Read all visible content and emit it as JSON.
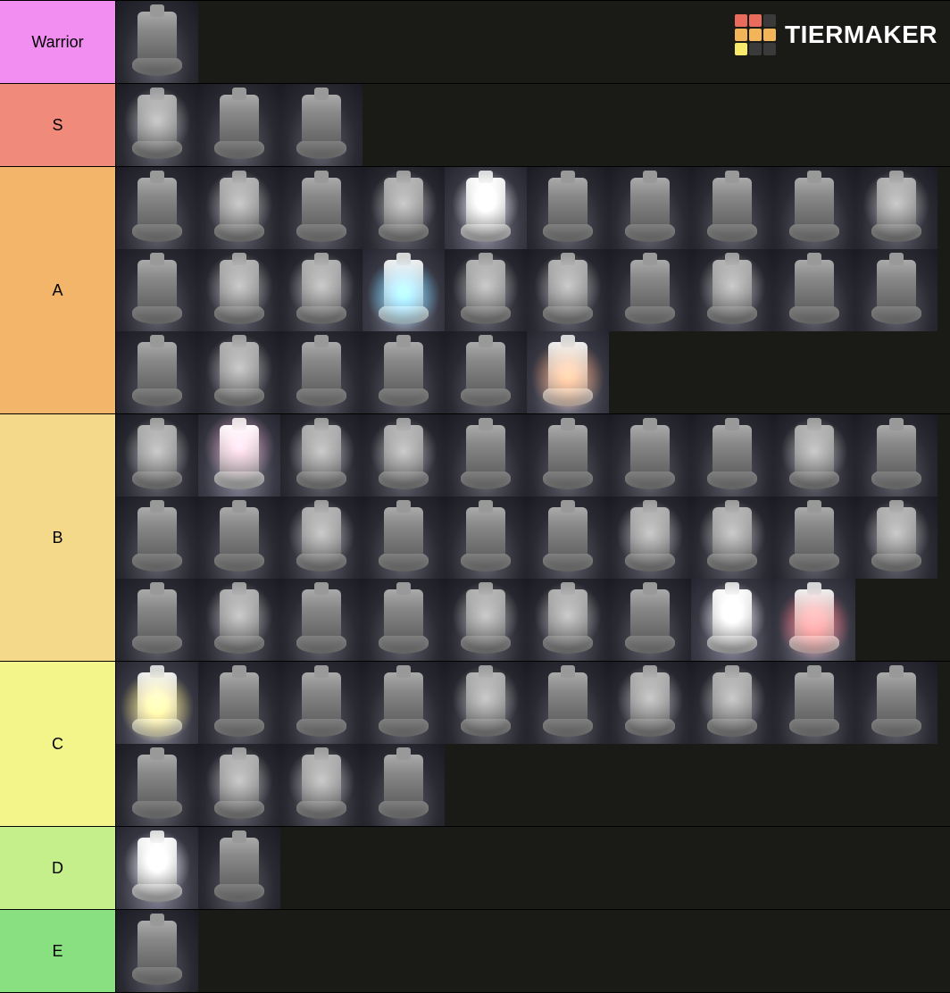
{
  "brand": {
    "name": "TIERMAKER"
  },
  "logo_colors": {
    "cells": [
      "#e86b5c",
      "#e86b5c",
      "#3a3a3a",
      "#f2b55a",
      "#f2b55a",
      "#f2b55a",
      "#f6e96b",
      "#3a3a3a",
      "#3a3a3a"
    ]
  },
  "tiers": [
    {
      "label": "Warrior",
      "color": "#f28ef2",
      "items": [
        {
          "glow": ""
        }
      ]
    },
    {
      "label": "S",
      "color": "#f08a7a",
      "items": [
        {
          "glow": "white"
        },
        {
          "glow": ""
        },
        {
          "glow": ""
        }
      ]
    },
    {
      "label": "A",
      "color": "#f2b56a",
      "items": [
        {
          "glow": ""
        },
        {
          "glow": "white"
        },
        {
          "glow": ""
        },
        {
          "glow": "white"
        },
        {
          "glow": "white",
          "bright": true
        },
        {
          "glow": ""
        },
        {
          "glow": ""
        },
        {
          "glow": ""
        },
        {
          "glow": ""
        },
        {
          "glow": "white"
        },
        {
          "glow": ""
        },
        {
          "glow": "white"
        },
        {
          "glow": "white"
        },
        {
          "glow": "cyan",
          "bright": true
        },
        {
          "glow": "white"
        },
        {
          "glow": "white"
        },
        {
          "glow": ""
        },
        {
          "glow": "white"
        },
        {
          "glow": ""
        },
        {
          "glow": ""
        },
        {
          "glow": ""
        },
        {
          "glow": "white"
        },
        {
          "glow": ""
        },
        {
          "glow": ""
        },
        {
          "glow": ""
        },
        {
          "glow": "orange",
          "bright": true
        }
      ]
    },
    {
      "label": "B",
      "color": "#f5d98a",
      "items": [
        {
          "glow": "white"
        },
        {
          "glow": "pink",
          "bright": true
        },
        {
          "glow": "white"
        },
        {
          "glow": "white"
        },
        {
          "glow": ""
        },
        {
          "glow": ""
        },
        {
          "glow": ""
        },
        {
          "glow": ""
        },
        {
          "glow": "white"
        },
        {
          "glow": ""
        },
        {
          "glow": ""
        },
        {
          "glow": ""
        },
        {
          "glow": "white"
        },
        {
          "glow": ""
        },
        {
          "glow": ""
        },
        {
          "glow": ""
        },
        {
          "glow": "white"
        },
        {
          "glow": "white"
        },
        {
          "glow": ""
        },
        {
          "glow": "white"
        },
        {
          "glow": ""
        },
        {
          "glow": "white"
        },
        {
          "glow": ""
        },
        {
          "glow": ""
        },
        {
          "glow": "white"
        },
        {
          "glow": "white"
        },
        {
          "glow": ""
        },
        {
          "glow": "white",
          "bright": true
        },
        {
          "glow": "red",
          "bright": true
        }
      ]
    },
    {
      "label": "C",
      "color": "#f3f58a",
      "items": [
        {
          "glow": "yellow",
          "bright": true
        },
        {
          "glow": ""
        },
        {
          "glow": ""
        },
        {
          "glow": ""
        },
        {
          "glow": "white"
        },
        {
          "glow": ""
        },
        {
          "glow": "white"
        },
        {
          "glow": "white"
        },
        {
          "glow": ""
        },
        {
          "glow": ""
        },
        {
          "glow": ""
        },
        {
          "glow": "white"
        },
        {
          "glow": "white"
        },
        {
          "glow": ""
        }
      ]
    },
    {
      "label": "D",
      "color": "#c4ef8a",
      "items": [
        {
          "glow": "white",
          "bright": true
        },
        {
          "glow": ""
        }
      ]
    },
    {
      "label": "E",
      "color": "#88e080",
      "items": [
        {
          "glow": ""
        }
      ]
    }
  ]
}
